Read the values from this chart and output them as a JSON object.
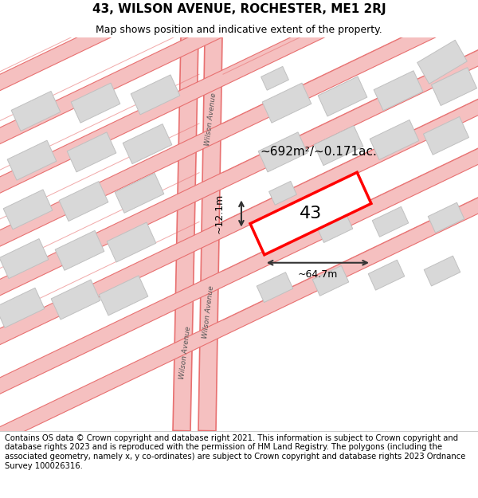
{
  "title": "43, WILSON AVENUE, ROCHESTER, ME1 2RJ",
  "subtitle": "Map shows position and indicative extent of the property.",
  "footer": "Contains OS data © Crown copyright and database right 2021. This information is subject to Crown copyright and database rights 2023 and is reproduced with the permission of HM Land Registry. The polygons (including the associated geometry, namely x, y co-ordinates) are subject to Crown copyright and database rights 2023 Ordnance Survey 100026316.",
  "area_label": "~692m²/~0.171ac.",
  "property_number": "43",
  "width_label": "~64.7m",
  "height_label": "~12.1m",
  "bg_color": "#ffffff",
  "map_bg": "#ffffff",
  "road_color": "#f5c0c0",
  "road_line_color": "#e87070",
  "building_fill": "#d8d8d8",
  "building_edge": "#c0c0c0",
  "highlight_color": "#ff0000",
  "road_stripe_color": "#f0a0a0",
  "title_fontsize": 11,
  "subtitle_fontsize": 9,
  "footer_fontsize": 7.2
}
